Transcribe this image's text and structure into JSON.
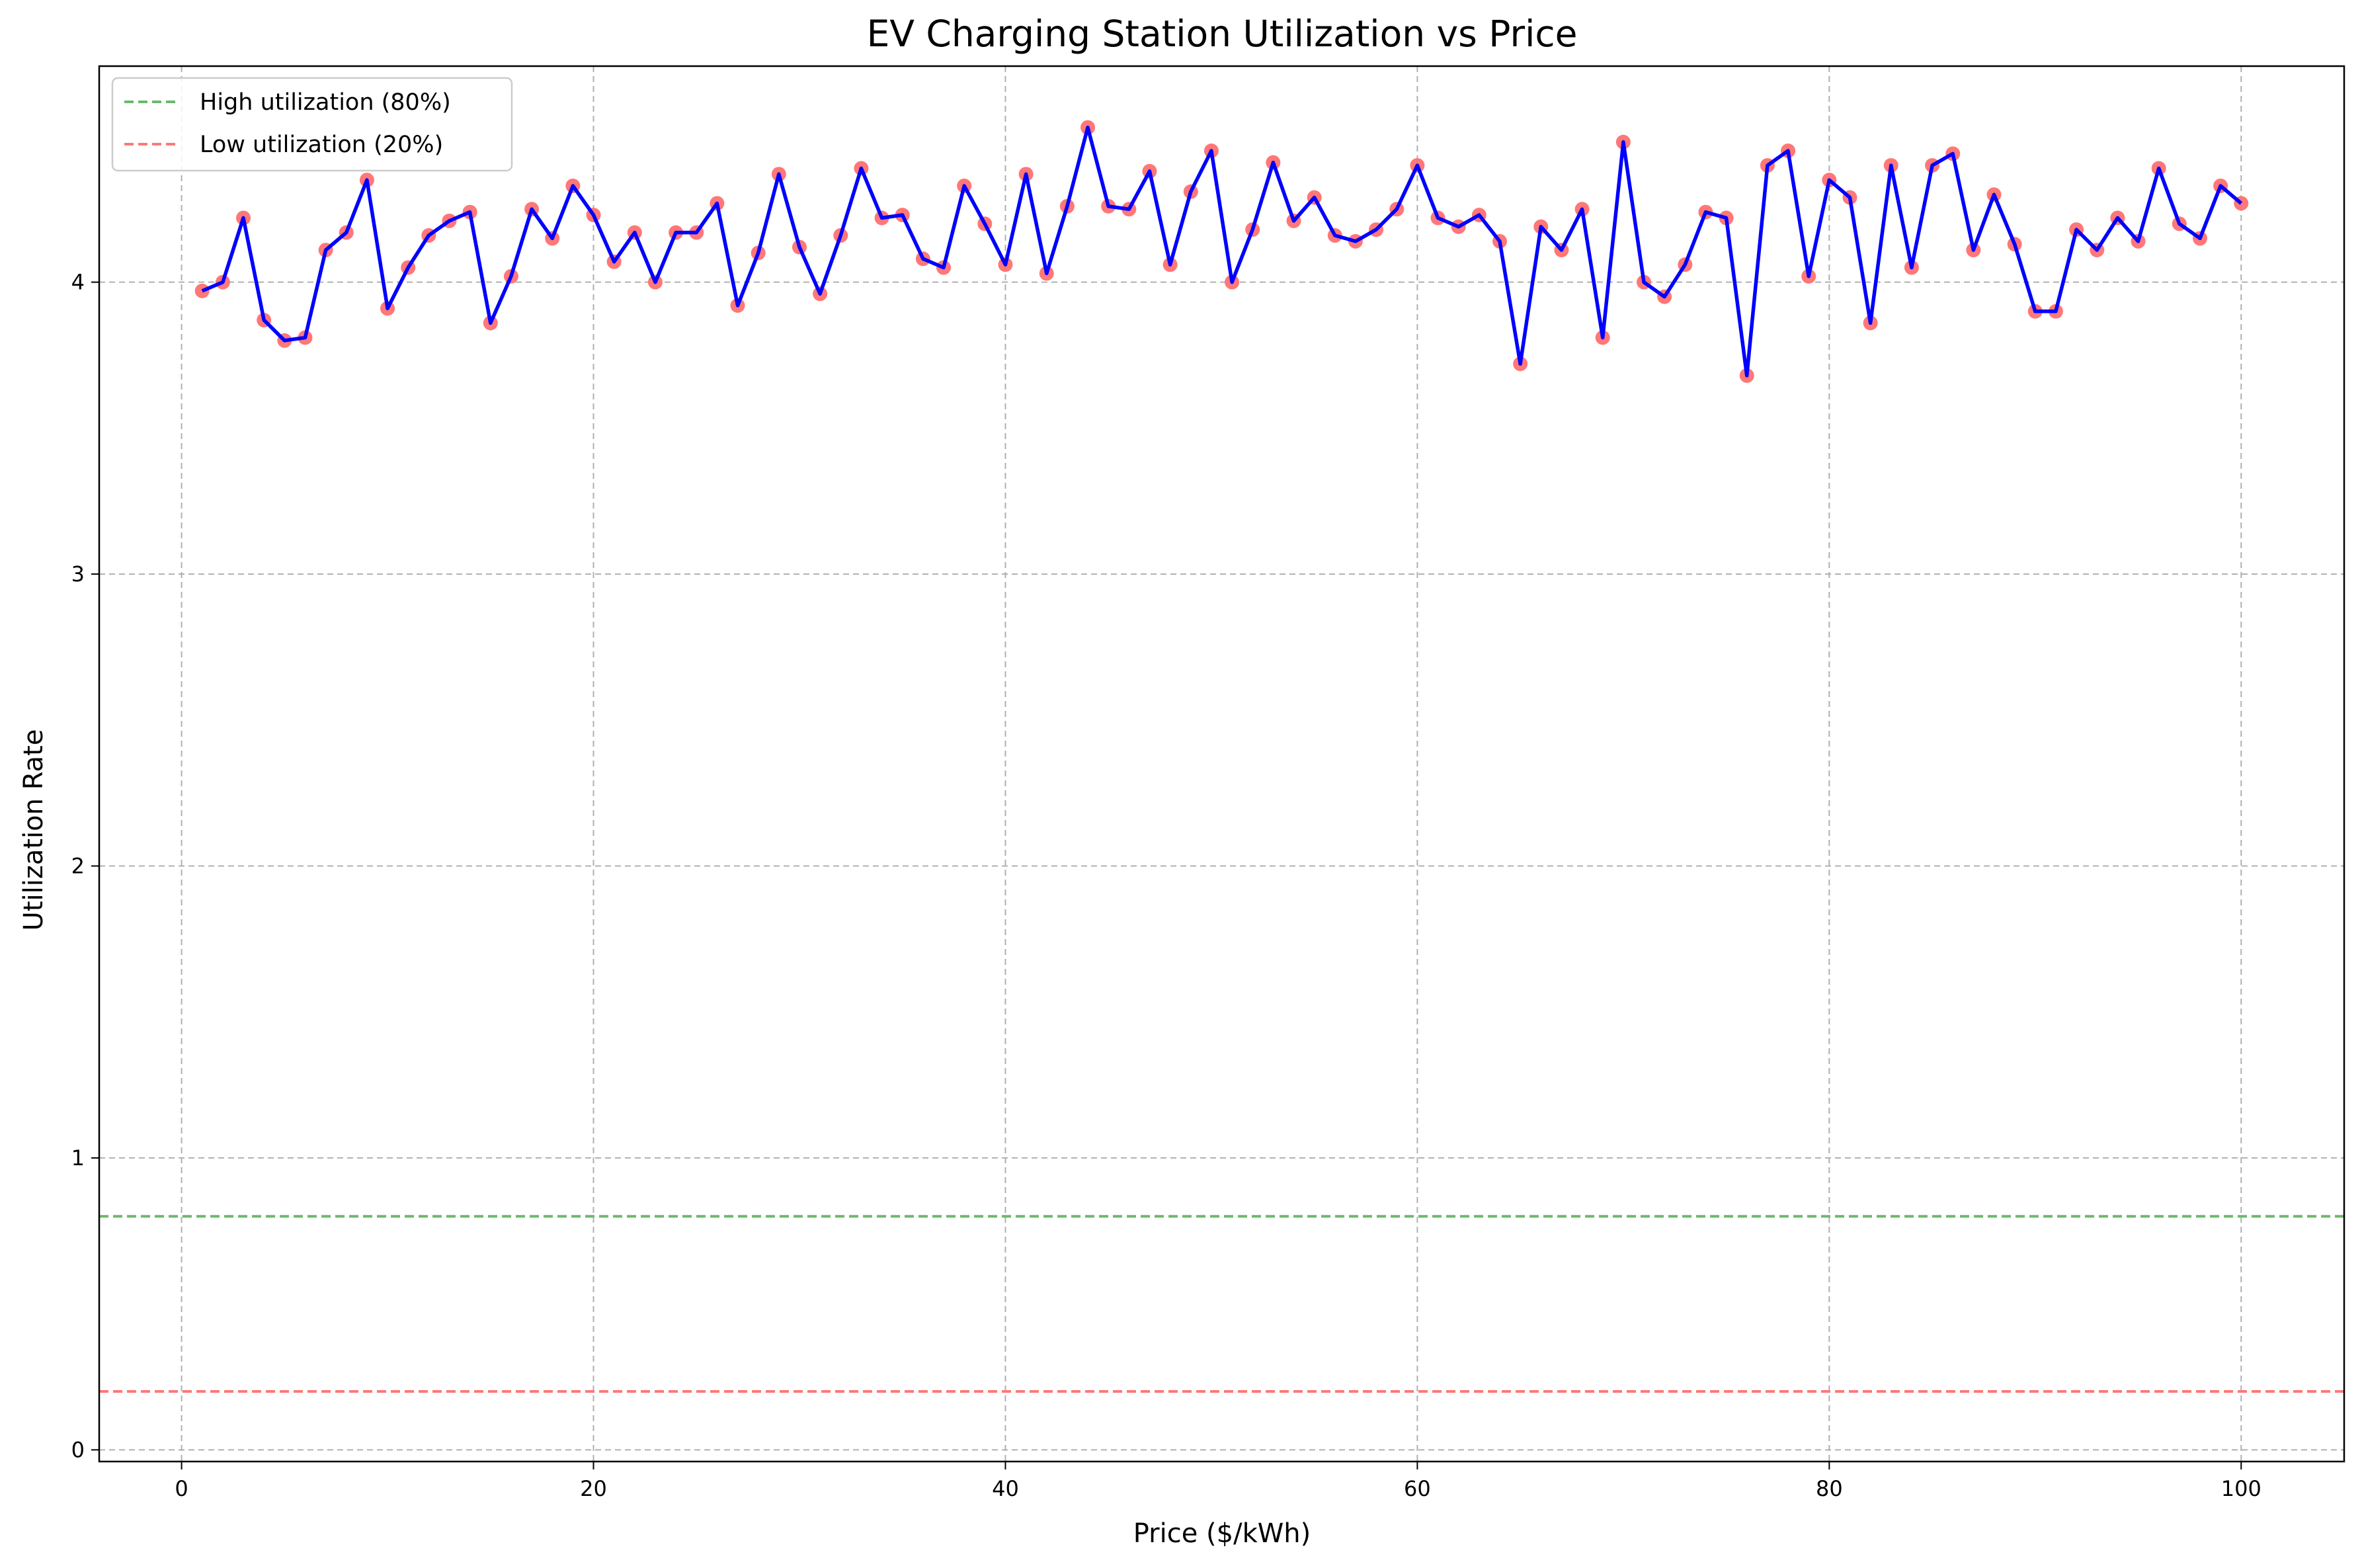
{
  "chart_data": {
    "type": "line",
    "title": "EV Charging Station Utilization vs Price",
    "xlabel": "Price ($/kWh)",
    "ylabel": "Utilization Rate",
    "xlim": [
      -4,
      105
    ],
    "ylim": [
      -0.04,
      4.74
    ],
    "xticks": [
      0,
      20,
      40,
      60,
      80,
      100
    ],
    "yticks": [
      0,
      1,
      2,
      3,
      4
    ],
    "grid": true,
    "legend_position": "top-left",
    "x": [
      1,
      2,
      3,
      4,
      5,
      6,
      7,
      8,
      9,
      10,
      11,
      12,
      13,
      14,
      15,
      16,
      17,
      18,
      19,
      20,
      21,
      22,
      23,
      24,
      25,
      26,
      27,
      28,
      29,
      30,
      31,
      32,
      33,
      34,
      35,
      36,
      37,
      38,
      39,
      40,
      41,
      42,
      43,
      44,
      45,
      46,
      47,
      48,
      49,
      50,
      51,
      52,
      53,
      54,
      55,
      56,
      57,
      58,
      59,
      60,
      61,
      62,
      63,
      64,
      65,
      66,
      67,
      68,
      69,
      70,
      71,
      72,
      73,
      74,
      75,
      76,
      77,
      78,
      79,
      80,
      81,
      82,
      83,
      84,
      85,
      86,
      87,
      88,
      89,
      90,
      91,
      92,
      93,
      94,
      95,
      96,
      97,
      98,
      99,
      100
    ],
    "y": [
      3.97,
      4.0,
      4.22,
      3.87,
      3.8,
      3.81,
      4.11,
      4.17,
      4.35,
      3.91,
      4.05,
      4.16,
      4.21,
      4.24,
      3.86,
      4.02,
      4.25,
      4.15,
      4.33,
      4.23,
      4.07,
      4.17,
      4.0,
      4.17,
      4.17,
      4.27,
      3.92,
      4.1,
      4.37,
      4.12,
      3.96,
      4.16,
      4.39,
      4.22,
      4.23,
      4.08,
      4.05,
      4.33,
      4.2,
      4.06,
      4.37,
      4.03,
      4.26,
      4.53,
      4.26,
      4.25,
      4.38,
      4.06,
      4.31,
      4.45,
      4.0,
      4.18,
      4.41,
      4.21,
      4.29,
      4.16,
      4.14,
      4.18,
      4.25,
      4.4,
      4.22,
      4.19,
      4.23,
      4.14,
      3.72,
      4.19,
      4.11,
      4.25,
      3.81,
      4.48,
      4.0,
      3.95,
      4.06,
      4.24,
      4.22,
      3.68,
      4.4,
      4.45,
      4.02,
      4.35,
      4.29,
      3.86,
      4.4,
      4.05,
      4.4,
      4.44,
      4.11,
      4.3,
      4.13,
      3.9,
      3.9,
      4.18,
      4.11,
      4.22,
      4.14,
      4.39,
      4.2,
      4.15,
      4.33,
      4.27
    ],
    "series": [
      {
        "values_ref": "y",
        "line_color": "#0000ff",
        "marker_color": "#ff7070"
      }
    ],
    "reference_lines": [
      {
        "name": "High utilization (80%)",
        "y": 0.8,
        "color": "#6aba6a"
      },
      {
        "name": "Low utilization (20%)",
        "y": 0.2,
        "color": "#ff7878"
      }
    ]
  }
}
